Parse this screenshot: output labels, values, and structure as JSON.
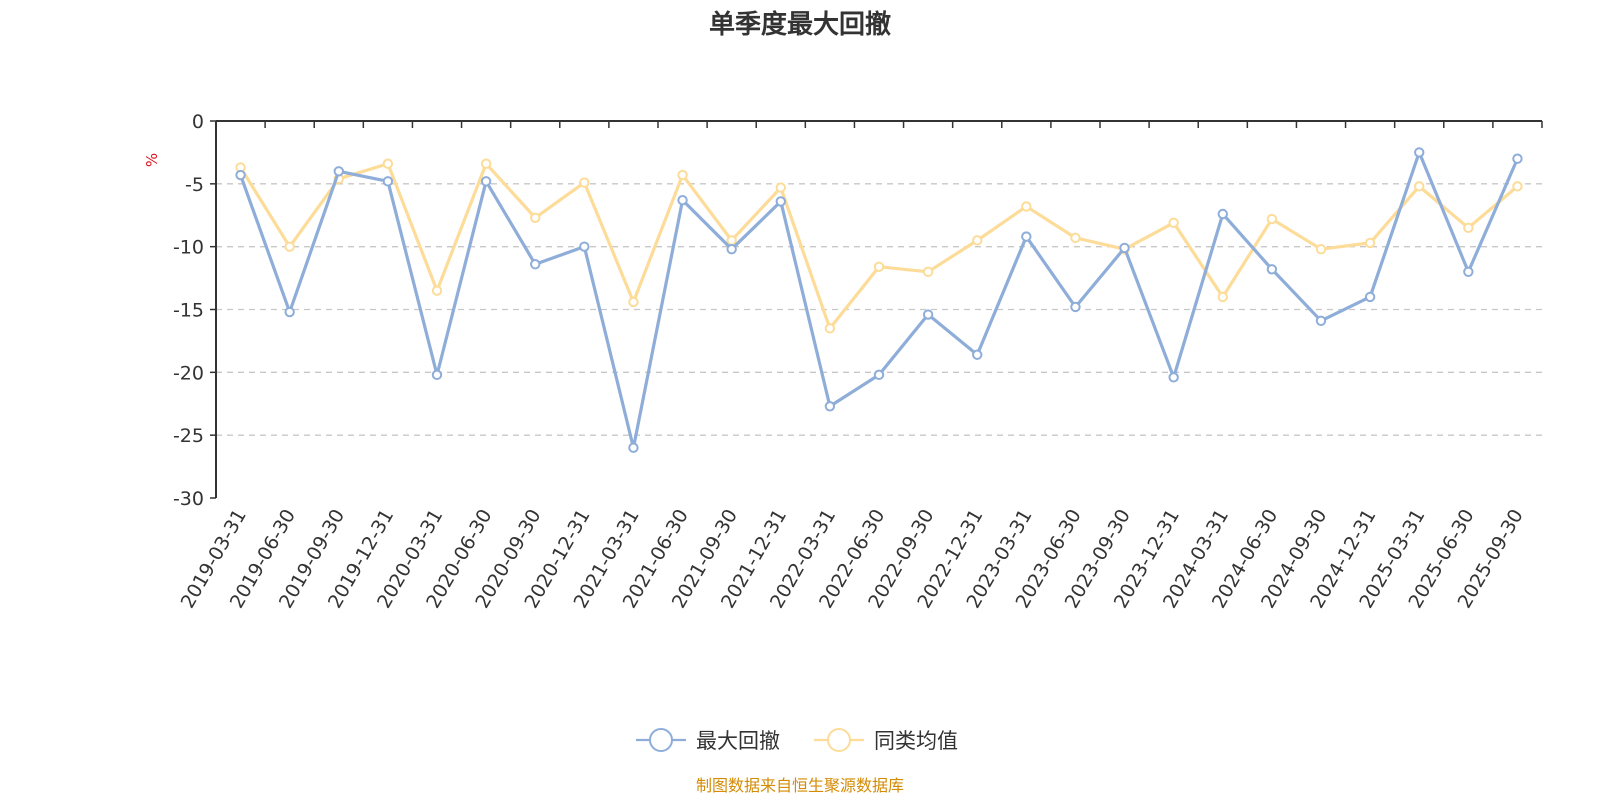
{
  "chart_data": {
    "type": "line",
    "title": "单季度最大回撤",
    "ylabel": "%",
    "xlabel": "",
    "ylim": [
      -30,
      0
    ],
    "yticks": [
      0,
      -5,
      -10,
      -15,
      -20,
      -25,
      -30
    ],
    "grid": true,
    "categories": [
      "2019-03-31",
      "2019-06-30",
      "2019-09-30",
      "2019-12-31",
      "2020-03-31",
      "2020-06-30",
      "2020-09-30",
      "2020-12-31",
      "2021-03-31",
      "2021-06-30",
      "2021-09-30",
      "2021-12-31",
      "2022-03-31",
      "2022-06-30",
      "2022-09-30",
      "2022-12-31",
      "2023-03-31",
      "2023-06-30",
      "2023-09-30",
      "2023-12-31",
      "2024-03-31",
      "2024-06-30",
      "2024-09-30",
      "2024-12-31",
      "2025-03-31",
      "2025-06-30",
      "2025-09-30"
    ],
    "series": [
      {
        "name": "最大回撤",
        "color": "#8eadd9",
        "values": [
          -4.3,
          -15.2,
          -4.0,
          -4.8,
          -20.2,
          -4.8,
          -11.4,
          -10.0,
          -26.0,
          -6.3,
          -10.2,
          -6.4,
          -22.7,
          -20.2,
          -15.4,
          -18.6,
          -9.2,
          -14.8,
          -10.1,
          -20.4,
          -7.4,
          -11.8,
          -15.9,
          -14.0,
          -2.5,
          -12.0,
          -3.0
        ]
      },
      {
        "name": "同类均值",
        "color": "#fcdc98",
        "values": [
          -3.7,
          -10.0,
          -4.6,
          -3.4,
          -13.5,
          -3.4,
          -7.7,
          -4.9,
          -14.4,
          -4.3,
          -9.5,
          -5.3,
          -16.5,
          -11.6,
          -12.0,
          -9.5,
          -6.8,
          -9.3,
          -10.2,
          -8.1,
          -14.0,
          -7.8,
          -10.2,
          -9.7,
          -5.2,
          -8.5,
          -5.2
        ]
      }
    ],
    "legend": "bottom-center",
    "source": "制图数据来自恒生聚源数据库"
  }
}
